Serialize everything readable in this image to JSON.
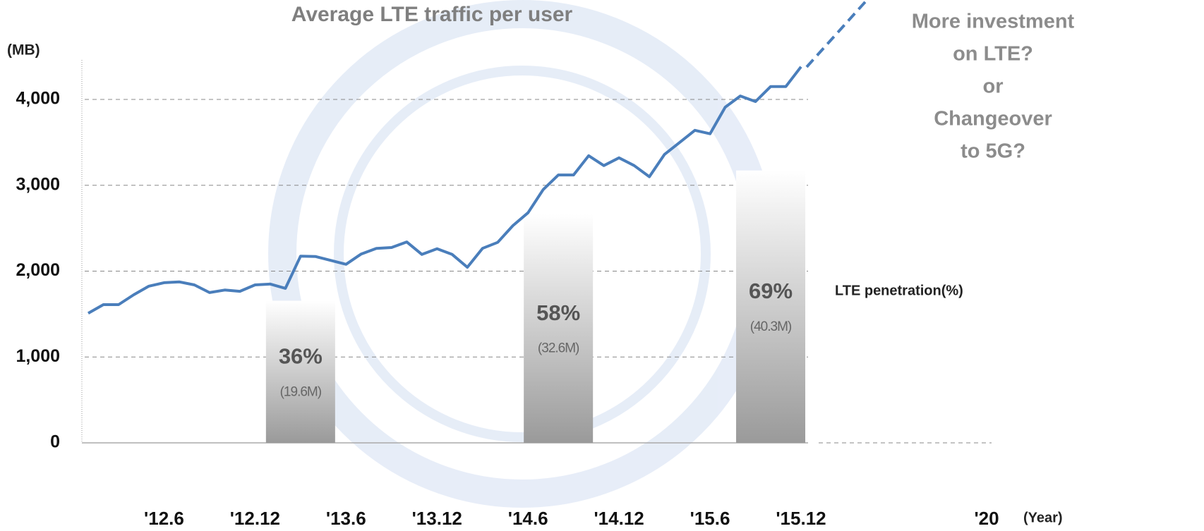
{
  "chart_data": {
    "type": "line",
    "title": "Average LTE traffic per user",
    "y_label": "(MB)",
    "x_label": "(Year)",
    "x_end_label": "'20",
    "categories": [
      null,
      null,
      null,
      null,
      null,
      "'12.6",
      null,
      null,
      null,
      null,
      null,
      "'12.12",
      null,
      null,
      null,
      null,
      null,
      "'13.6",
      null,
      null,
      null,
      null,
      null,
      "'13.12",
      null,
      null,
      null,
      null,
      null,
      "'14.6",
      null,
      null,
      null,
      null,
      null,
      "'14.12",
      null,
      null,
      null,
      null,
      null,
      "'15.6",
      null,
      null,
      null,
      null,
      null,
      "'15.12"
    ],
    "series": [
      {
        "name": "Average LTE traffic per user",
        "color": "#4a7ebb",
        "values": [
          1510,
          1610,
          1610,
          1725,
          1825,
          1865,
          1875,
          1840,
          1750,
          1780,
          1765,
          1840,
          1850,
          1800,
          2175,
          2170,
          2125,
          2080,
          2200,
          2265,
          2275,
          2340,
          2195,
          2260,
          2195,
          2045,
          2265,
          2335,
          2530,
          2680,
          2950,
          3120,
          3120,
          3345,
          3230,
          3320,
          3230,
          3100,
          3360,
          3500,
          3640,
          3600,
          3910,
          4040,
          3975,
          4150,
          4150,
          4380
        ]
      },
      {
        "name": "LTE penetration(%)",
        "type": "bar",
        "axis": "y2",
        "color": "#9a9a9a",
        "values": [
          null,
          null,
          null,
          null,
          null,
          null,
          null,
          null,
          null,
          null,
          null,
          null,
          null,
          null,
          36,
          null,
          null,
          null,
          null,
          null,
          null,
          null,
          null,
          null,
          null,
          null,
          null,
          null,
          null,
          null,
          null,
          58,
          null,
          null,
          null,
          null,
          null,
          null,
          null,
          null,
          null,
          null,
          null,
          null,
          null,
          69,
          null,
          null
        ],
        "value_labels": [
          null,
          null,
          null,
          null,
          null,
          null,
          null,
          null,
          null,
          null,
          null,
          null,
          null,
          null,
          "36%",
          null,
          null,
          null,
          null,
          null,
          null,
          null,
          null,
          null,
          null,
          null,
          null,
          null,
          null,
          null,
          null,
          "58%",
          null,
          null,
          null,
          null,
          null,
          null,
          null,
          null,
          null,
          null,
          null,
          null,
          null,
          "69%",
          null,
          null
        ],
        "subscriber_labels": [
          null,
          null,
          null,
          null,
          null,
          null,
          null,
          null,
          null,
          null,
          null,
          null,
          null,
          null,
          "(19.6M)",
          null,
          null,
          null,
          null,
          null,
          null,
          null,
          null,
          null,
          null,
          null,
          null,
          null,
          null,
          null,
          null,
          "(32.6M)",
          null,
          null,
          null,
          null,
          null,
          null,
          null,
          null,
          null,
          null,
          null,
          null,
          null,
          "(40.3M)",
          null,
          null
        ]
      }
    ],
    "ylim": [
      0,
      4460
    ],
    "yticks": [
      0,
      {
        "value": 1000,
        "label": "1,000"
      },
      {
        "value": 2000,
        "label": "2,000"
      },
      {
        "value": 3000,
        "label": "3,000"
      },
      {
        "value": 4000,
        "label": "4,000"
      }
    ],
    "y2lim": [
      0,
      97
    ],
    "grid": true,
    "annotation": [
      "More investment",
      "on LTE?",
      "or",
      "Changeover",
      "to 5G?"
    ]
  }
}
